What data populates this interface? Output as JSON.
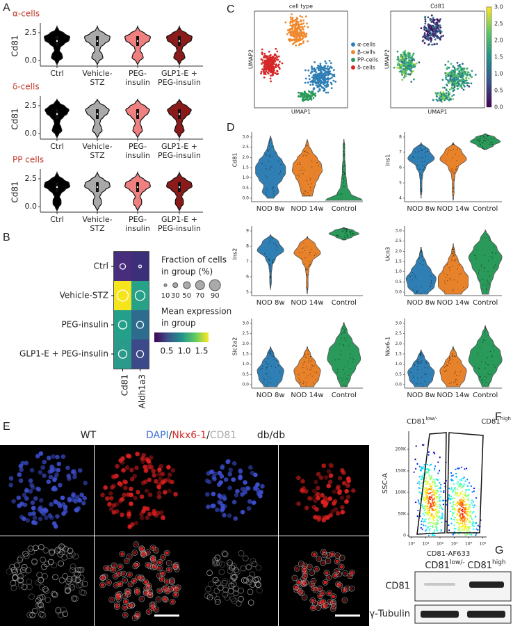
{
  "panel_A": {
    "label": "A",
    "groups": [
      "α-cells",
      "δ-cells",
      "PP cells"
    ],
    "ylabel": "Cd81",
    "yticks": [
      "0.0",
      "2.5"
    ],
    "categories": [
      [
        "Ctrl"
      ],
      [
        "Vehicle-",
        "STZ"
      ],
      [
        "PEG-",
        "insulin"
      ],
      [
        "GLP1-E +",
        "PEG-insulin"
      ]
    ]
  },
  "panel_B": {
    "label": "B",
    "rows": [
      "Ctrl",
      "Vehicle-STZ",
      "PEG-insulin",
      "GLP1-E + PEG-insulin"
    ],
    "columns": [
      "Cd81",
      "Aldh1a3"
    ],
    "size_legend_title": [
      "Fraction of cells",
      "in group (%)"
    ],
    "size_ticks": [
      "10",
      "30",
      "50",
      "70",
      "90"
    ],
    "color_legend_title": [
      "Mean expression",
      "in group"
    ],
    "color_ticks": [
      "0.5",
      "1.0",
      "1.5"
    ]
  },
  "panel_C": {
    "label": "C",
    "plots": [
      {
        "title": "cell type"
      },
      {
        "title": "Cd81"
      }
    ],
    "xlabel": "UMAP1",
    "ylabel": "UMAP2",
    "legend": [
      "α-cells",
      "β-cells",
      "PP-cells",
      "δ-cells"
    ],
    "colorbar_ticks": [
      "0.0",
      "0.5",
      "1.0",
      "1.5",
      "2.0",
      "2.5",
      "3.0"
    ]
  },
  "panel_D": {
    "label": "D",
    "categories": [
      "NOD 8w",
      "NOD 14w",
      "Control"
    ],
    "plots": [
      {
        "ylabel": "Cd81",
        "yticks": [
          "0.0",
          "0.5",
          "1.0",
          "1.5",
          "2.0",
          "2.5",
          "3.0"
        ]
      },
      {
        "ylabel": "Ins1",
        "yticks": [
          "4",
          "5",
          "6",
          "7",
          "8"
        ]
      },
      {
        "ylabel": "Ins2",
        "yticks": [
          "5",
          "6",
          "7",
          "8",
          "9"
        ]
      },
      {
        "ylabel": "Ucn3",
        "yticks": [
          "0.0",
          "0.5",
          "1.0",
          "1.5",
          "2.0",
          "2.5",
          "3.0"
        ]
      },
      {
        "ylabel": "Slc2a2",
        "yticks": [
          "0.0",
          "0.5",
          "1.0",
          "1.5",
          "2.0",
          "2.5",
          "3.0"
        ]
      },
      {
        "ylabel": "Nkx6-1",
        "yticks": [
          "0.0",
          "0.5",
          "1.0",
          "1.5",
          "2.0",
          "2.5",
          "3.0"
        ]
      }
    ]
  },
  "panel_E": {
    "label": "E",
    "left_title": "WT",
    "right_title": "db/db",
    "stains": [
      "DAPI",
      "/",
      "Nkx6-1",
      "/",
      "CD81"
    ]
  },
  "panel_F": {
    "label": "F",
    "gate_low": {
      "name": "CD81",
      "sup": "low/-"
    },
    "gate_high": {
      "name": "CD81",
      "sup": "high"
    },
    "ylabel": "SSC-A",
    "xlabel": "CD81-AF633",
    "yticks": [
      "0",
      "50K",
      "100K",
      "150K",
      "200K"
    ],
    "xticks": [
      "10⁰",
      "10¹",
      "10²",
      "10³",
      "10⁴",
      "10⁵"
    ]
  },
  "panel_G": {
    "label": "G",
    "lanes": [
      {
        "name": "CD81",
        "sup": "low/-"
      },
      {
        "name": "CD81",
        "sup": "high"
      }
    ],
    "bands": [
      "CD81",
      "γ-Tubulin"
    ]
  }
}
